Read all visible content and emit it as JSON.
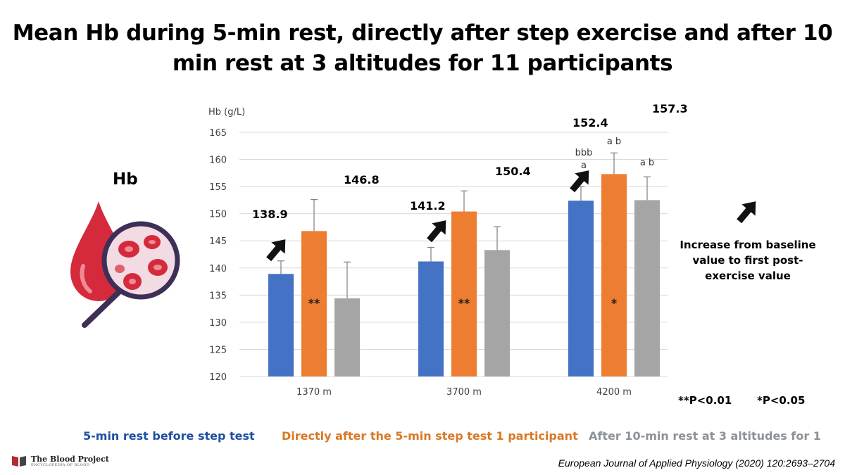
{
  "title": "Mean Hb during 5-min rest, directly after step exercise and after 10 min rest at 3 altitudes for 11 participants",
  "icon_label": "Hb",
  "arrow_note": "Increase from baseline value to first post-exercise value",
  "significance": {
    "p001": "**P<0.01",
    "p005": "*P<0.05"
  },
  "legend": [
    {
      "label": "5-min rest before step test",
      "color": "#1f4fa3"
    },
    {
      "label": "Directly after the 5-min step test 1 participant",
      "color": "#d97826"
    },
    {
      "label": "After 10-min rest at 3 altitudes for 1",
      "color": "#8d9299"
    }
  ],
  "logo": {
    "name": "The Blood Project",
    "tagline": "ENCYCLOPEDIA OF BLOOD"
  },
  "citation": "European Journal of Applied Physiology (2020) 120:2693–2704",
  "colors": {
    "blue": "#4472c4",
    "orange": "#ed7d31",
    "gray": "#a5a5a5"
  },
  "chart_data": {
    "type": "bar",
    "ylabel": "Hb (g/L)",
    "ylim": [
      120,
      165
    ],
    "yticks": [
      120,
      125,
      130,
      135,
      140,
      145,
      150,
      155,
      160,
      165
    ],
    "grid": true,
    "categories": [
      "1370 m",
      "3700 m",
      "4200 m"
    ],
    "series": [
      {
        "name": "5-min rest before step test",
        "values": [
          138.9,
          141.2,
          152.4
        ],
        "errors": [
          2.4,
          2.6,
          2.6
        ]
      },
      {
        "name": "Directly after the 5-min step test",
        "values": [
          146.8,
          150.4,
          157.3
        ],
        "errors": [
          5.8,
          3.8,
          3.9
        ]
      },
      {
        "name": "After 10-min rest",
        "values": [
          134.4,
          143.3,
          152.5
        ],
        "errors": [
          6.7,
          4.3,
          4.3
        ]
      }
    ],
    "value_labels": [
      {
        "category": 0,
        "series": 0,
        "text": "138.9"
      },
      {
        "category": 0,
        "series": 1,
        "text": "146.8"
      },
      {
        "category": 1,
        "series": 0,
        "text": "141.2"
      },
      {
        "category": 1,
        "series": 1,
        "text": "150.4"
      },
      {
        "category": 2,
        "series": 0,
        "text": "152.4"
      },
      {
        "category": 2,
        "series": 1,
        "text": "157.3"
      }
    ],
    "bar_annotations": [
      {
        "category": 0,
        "series": 1,
        "text": "**"
      },
      {
        "category": 1,
        "series": 1,
        "text": "**"
      },
      {
        "category": 2,
        "series": 1,
        "text": "*"
      }
    ],
    "letter_annotations": [
      {
        "category": 2,
        "series": 0,
        "lines": [
          "bbb",
          "a"
        ]
      },
      {
        "category": 2,
        "series": 1,
        "lines": [
          "a b"
        ]
      },
      {
        "category": 2,
        "series": 2,
        "lines": [
          "a b"
        ]
      }
    ]
  }
}
